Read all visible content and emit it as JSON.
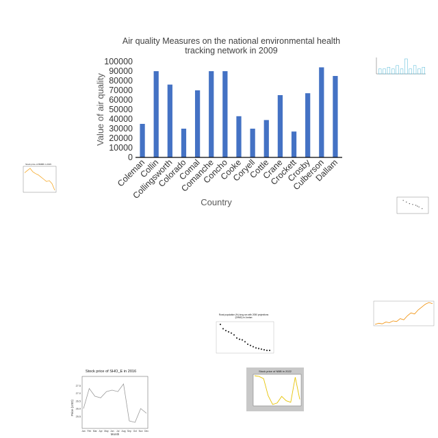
{
  "chart_data": {
    "type": "bar",
    "title": "Air quality Measures on the national environmental health tracking network in 2009",
    "title_lines": [
      "Air quality Measures on the national environmental health",
      "tracking network in 2009"
    ],
    "xlabel": "Country",
    "ylabel": "Value of air quality",
    "categories": [
      "Coleman",
      "Collin",
      "Collingsworth",
      "Colorado",
      "Comal",
      "Comanche",
      "Concho",
      "Cooke",
      "Coryell",
      "Cottle",
      "Crane",
      "Crockett",
      "Crosby",
      "Culberson",
      "Dallam"
    ],
    "values": [
      35000,
      90000,
      76000,
      30000,
      70000,
      90000,
      90000,
      43000,
      30000,
      39000,
      65000,
      27000,
      67000,
      94000,
      85000
    ],
    "ylim": [
      0,
      100000
    ],
    "yticks": [
      0,
      10000,
      20000,
      30000,
      40000,
      50000,
      60000,
      70000,
      80000,
      90000,
      100000
    ],
    "grid": false,
    "bar_color": "#4472c4"
  },
  "thumbnails": {
    "stock_2016": {
      "title": "Stock price of SHO_E in 2016",
      "xlabel": "Month",
      "ylabel": "Price (USD)",
      "months": [
        "Jan",
        "Feb",
        "Mar",
        "Apr",
        "May",
        "Jun",
        "Jul",
        "Aug",
        "Sep",
        "Oct",
        "Nov",
        "Dec"
      ],
      "values": [
        26.0,
        27.3,
        26.8,
        26.7,
        27.1,
        27.2,
        27.1,
        27.6,
        25.2,
        25.1,
        26.0,
        25.7
      ],
      "ylim": [
        24.8,
        28.0
      ],
      "yticks": [
        "25.5",
        "26.0",
        "26.5",
        "27.0",
        "27.5"
      ],
      "line_color": "#888888"
    },
    "stock_2022": {
      "title": "Stock price of NBB in 2022",
      "values": [
        72,
        71,
        68,
        45,
        33,
        35,
        44,
        38,
        36,
        70,
        40
      ],
      "line_color": "#e6c200",
      "bg_color": "#c8c8c8"
    },
    "rural_population": {
      "title": "Rural population (%) long-run with 2050 projections (OWID) in Jordan",
      "values": [
        62,
        55,
        52,
        50,
        48,
        45,
        40,
        38,
        37,
        34,
        30,
        28,
        26,
        24,
        23,
        22,
        21,
        20,
        20
      ]
    },
    "orange_left": {
      "title": "Stock price of BNBB in 2015",
      "values": [
        60,
        65,
        70,
        62,
        58,
        55,
        50,
        45,
        40,
        42,
        35,
        20
      ]
    },
    "orange_right": {
      "values": [
        20,
        22,
        21,
        24,
        23,
        26,
        25,
        30,
        28,
        35,
        40,
        38,
        45,
        50,
        55,
        58,
        56
      ]
    },
    "bars_outline": {
      "values": [
        3,
        3,
        4,
        3,
        5,
        3,
        9,
        3,
        5,
        3,
        4
      ]
    },
    "scatter": {
      "points": [
        [
          0.2,
          0.8
        ],
        [
          0.4,
          0.6
        ],
        [
          0.6,
          0.5
        ],
        [
          0.3,
          0.7
        ],
        [
          0.7,
          0.4
        ],
        [
          0.5,
          0.55
        ],
        [
          0.8,
          0.3
        ],
        [
          0.65,
          0.45
        ]
      ]
    }
  }
}
